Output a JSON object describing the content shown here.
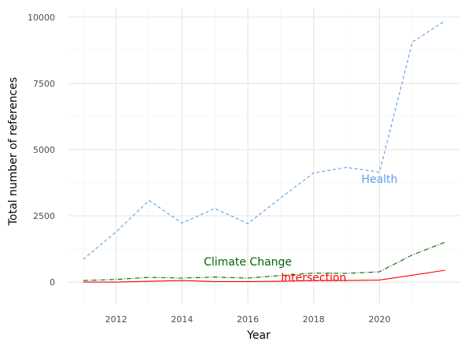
{
  "chart_data": {
    "type": "line",
    "xlabel": "Year",
    "ylabel": "Total number of references",
    "xlim": [
      2010.55,
      2022.45
    ],
    "ylim": [
      -800,
      10350
    ],
    "x_ticks": [
      2012,
      2014,
      2016,
      2018,
      2020
    ],
    "y_ticks": [
      0,
      2500,
      5000,
      7500,
      10000
    ],
    "x_tick_labels": [
      "2012",
      "2014",
      "2016",
      "2018",
      "2020"
    ],
    "y_tick_labels": [
      "0",
      "2500",
      "5000",
      "7500",
      "10000"
    ],
    "grid": true,
    "legend": "none",
    "x": [
      2011,
      2012,
      2013,
      2014,
      2015,
      2016,
      2017,
      2018,
      2019,
      2020,
      2021,
      2022
    ],
    "series": [
      {
        "name": "Health",
        "color": "#5b9ee6",
        "dash": "dashed",
        "values": [
          860,
          1900,
          3080,
          2230,
          2780,
          2210,
          3180,
          4120,
          4330,
          4150,
          9060,
          9870
        ],
        "label_x": 2020,
        "label_y": 3900
      },
      {
        "name": "Climate Change",
        "color": "#006400",
        "dash": "dashdot",
        "values": [
          60,
          100,
          180,
          150,
          190,
          150,
          250,
          340,
          330,
          390,
          1030,
          1510
        ],
        "label_x": 2016,
        "label_y": 780
      },
      {
        "name": "Intersection",
        "color": "#ff0000",
        "dash": "solid",
        "values": [
          0,
          0,
          30,
          60,
          20,
          20,
          30,
          60,
          60,
          80,
          260,
          450
        ],
        "label_x": 2018,
        "label_y": 180
      }
    ]
  }
}
